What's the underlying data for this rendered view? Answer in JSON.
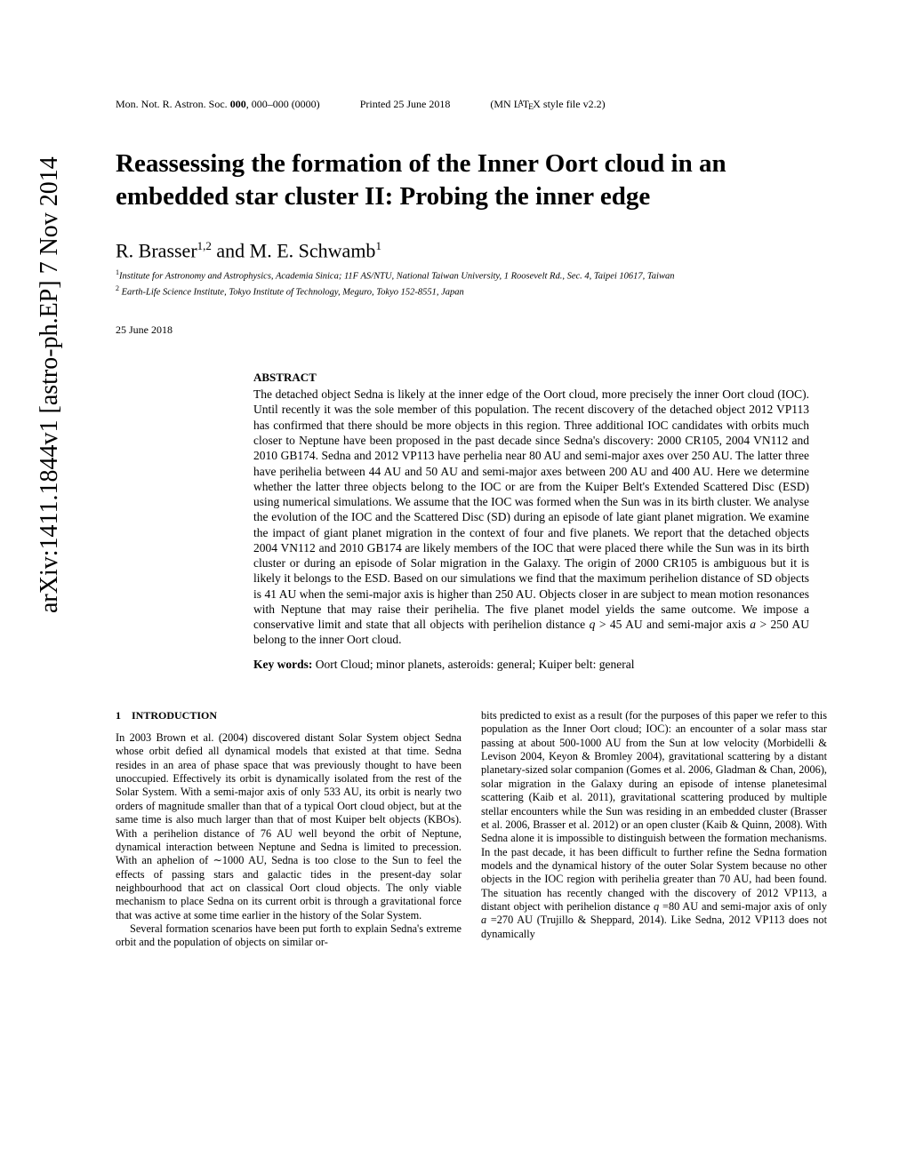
{
  "arxiv": "arXiv:1411.1844v1  [astro-ph.EP]  7 Nov 2014",
  "running": {
    "journal": "Mon. Not. R. Astron. Soc. ",
    "vol": "000",
    "pages": ", 000–000 (0000)",
    "printed": "Printed 25 June 2018",
    "style": "(MN LATEX style file v2.2)"
  },
  "title": "Reassessing the formation of the Inner Oort cloud in an embedded star cluster II: Probing the inner edge",
  "authors_html": "R. Brasser",
  "authors_sup1": "1,2",
  "authors_and": " and M. E. Schwamb",
  "authors_sup2": "1",
  "affil1": "Institute for Astronomy and Astrophysics, Academia Sinica; 11F AS/NTU, National Taiwan University, 1 Roosevelt Rd., Sec. 4, Taipei 10617, Taiwan",
  "affil2": " Earth-Life Science Institute, Tokyo Institute of Technology, Meguro, Tokyo 152-8551, Japan",
  "date": "25 June 2018",
  "abstract_label": "ABSTRACT",
  "abstract": "The detached object Sedna is likely at the inner edge of the Oort cloud, more precisely the inner Oort cloud (IOC). Until recently it was the sole member of this population. The recent discovery of the detached object 2012 VP113 has confirmed that there should be more objects in this region. Three additional IOC candidates with orbits much closer to Neptune have been proposed in the past decade since Sedna's discovery: 2000 CR105, 2004 VN112 and 2010 GB174. Sedna and 2012 VP113 have perhelia near 80 AU and semi-major axes over 250 AU. The latter three have perihelia between 44 AU and 50 AU and semi-major axes between 200 AU and 400 AU. Here we determine whether the latter three objects belong to the IOC or are from the Kuiper Belt's Extended Scattered Disc (ESD) using numerical simulations. We assume that the IOC was formed when the Sun was in its birth cluster. We analyse the evolution of the IOC and the Scattered Disc (SD) during an episode of late giant planet migration. We examine the impact of giant planet migration in the context of four and five planets. We report that the detached objects 2004 VN112 and 2010 GB174 are likely members of the IOC that were placed there while the Sun was in its birth cluster or during an episode of Solar migration in the Galaxy. The origin of 2000 CR105 is ambiguous but it is likely it belongs to the ESD. Based on our simulations we find that the maximum perihelion distance of SD objects is 41 AU when the semi-major axis is higher than 250 AU. Objects closer in are subject to mean motion resonances with Neptune that may raise their perihelia. The five planet model yields the same outcome. We impose a conservative limit and state that all objects with perihelion distance q > 45 AU and semi-major axis a > 250 AU belong to the inner Oort cloud.",
  "keywords_label": "Key words:",
  "keywords": "  Oort Cloud; minor planets, asteroids: general; Kuiper belt: general",
  "section1_num": "1",
  "section1_title": "INTRODUCTION",
  "col1_p1": "In 2003 Brown et al. (2004) discovered distant Solar System object Sedna whose orbit defied all dynamical models that existed at that time. Sedna resides in an area of phase space that was previously thought to have been unoccupied. Effectively its orbit is dynamically isolated from the rest of the Solar System. With a semi-major axis of only 533 AU, its orbit is nearly two orders of magnitude smaller than that of a typical Oort cloud object, but at the same time is also much larger than that of most Kuiper belt objects (KBOs). With a perihelion distance of 76 AU well beyond the orbit of Neptune, dynamical interaction between Neptune and Sedna is limited to precession. With an aphelion of ∼1000 AU, Sedna is too close to the Sun to feel the effects of passing stars and galactic tides in the present-day solar neighbourhood that act on classical Oort cloud objects. The only viable mechanism to place Sedna on its current orbit is through a gravitational force that was active at some time earlier in the history of the Solar System.",
  "col1_p2": "Several formation scenarios have been put forth to explain Sedna's extreme orbit and the population of objects on similar or-",
  "col2_p1": "bits predicted to exist as a result (for the purposes of this paper we refer to this population as the Inner Oort cloud; IOC): an encounter of a solar mass star passing at about 500-1000 AU from the Sun at low velocity (Morbidelli & Levison 2004, Keyon & Bromley 2004), gravitational scattering by a distant planetary-sized solar companion (Gomes et al. 2006, Gladman & Chan, 2006), solar migration in the Galaxy during an episode of intense planetesimal scattering (Kaib et al. 2011), gravitational scattering produced by multiple stellar encounters while the Sun was residing in an embedded cluster (Brasser et al. 2006, Brasser et al. 2012) or an open cluster (Kaib & Quinn, 2008). With Sedna alone it is impossible to distinguish between the formation mechanisms. In the past decade, it has been difficult to further refine the Sedna formation models and the dynamical history of the outer Solar System because no other objects in the IOC region with perihelia greater than 70 AU, had been found. The situation has recently changed with the discovery of 2012 VP113, a distant object with perihelion distance q =80 AU and semi-major axis of only a =270 AU (Trujillo & Sheppard, 2014). Like Sedna, 2012 VP113 does not dynamically"
}
